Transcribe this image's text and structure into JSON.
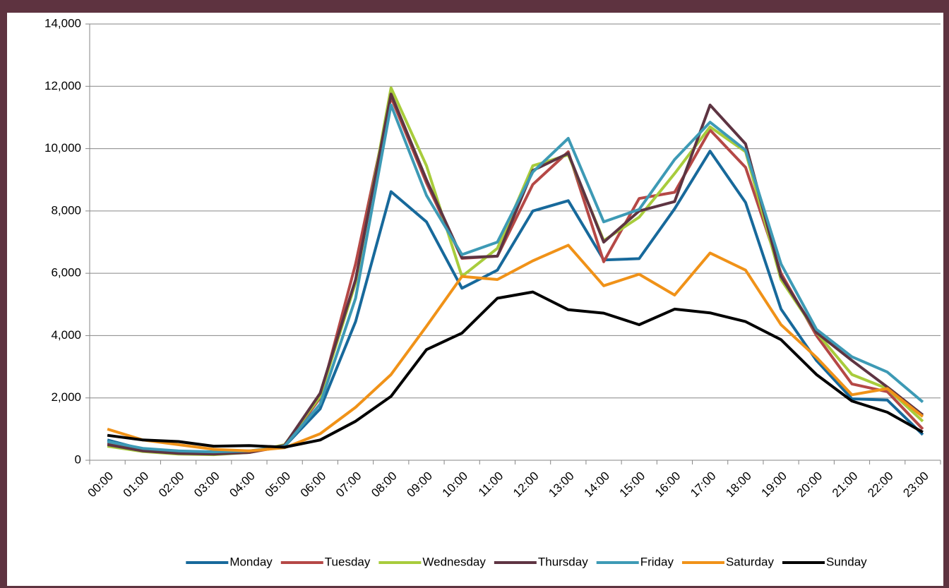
{
  "chart_data": {
    "type": "line",
    "categories": [
      "00:00",
      "01:00",
      "02:00",
      "03:00",
      "04:00",
      "05:00",
      "06:00",
      "07:00",
      "08:00",
      "09:00",
      "10:00",
      "11:00",
      "12:00",
      "13:00",
      "14:00",
      "15:00",
      "16:00",
      "17:00",
      "18:00",
      "19:00",
      "20:00",
      "21:00",
      "22:00",
      "23:00"
    ],
    "series": [
      {
        "name": "Monday",
        "color": "#17699b",
        "values": [
          650,
          350,
          280,
          250,
          280,
          450,
          1650,
          4450,
          8620,
          7650,
          5520,
          6100,
          8000,
          8330,
          6430,
          6470,
          8070,
          9920,
          8270,
          4850,
          3200,
          1970,
          1930,
          820
        ]
      },
      {
        "name": "Tuesday",
        "color": "#b54846",
        "values": [
          550,
          300,
          230,
          220,
          250,
          450,
          2000,
          6300,
          11650,
          8900,
          6480,
          6550,
          8850,
          9900,
          6370,
          8400,
          8600,
          10600,
          9400,
          6000,
          4000,
          2450,
          2200,
          1000
        ]
      },
      {
        "name": "Wednesday",
        "color": "#a8cc3c",
        "values": [
          450,
          280,
          200,
          180,
          250,
          500,
          2050,
          5700,
          11950,
          9450,
          5900,
          6800,
          9450,
          9800,
          7050,
          7800,
          9200,
          10700,
          9900,
          5800,
          4100,
          2750,
          2300,
          1250
        ]
      },
      {
        "name": "Thursday",
        "color": "#5e3442",
        "values": [
          500,
          300,
          220,
          200,
          250,
          480,
          2150,
          5800,
          11750,
          9000,
          6500,
          6550,
          9300,
          9850,
          7000,
          8000,
          8300,
          11400,
          10150,
          5900,
          4100,
          3200,
          2350,
          1450
        ]
      },
      {
        "name": "Friday",
        "color": "#3d9ab5",
        "values": [
          600,
          380,
          300,
          270,
          300,
          450,
          1800,
          5200,
          11400,
          8500,
          6600,
          7000,
          9250,
          10330,
          7650,
          8050,
          9650,
          10850,
          9950,
          6300,
          4200,
          3320,
          2830,
          1870
        ]
      },
      {
        "name": "Saturday",
        "color": "#f09218",
        "values": [
          1000,
          650,
          500,
          350,
          300,
          400,
          850,
          1700,
          2750,
          4300,
          5900,
          5800,
          6400,
          6900,
          5600,
          5970,
          5300,
          6650,
          6100,
          4350,
          3300,
          2100,
          2300,
          1400
        ]
      },
      {
        "name": "Sunday",
        "color": "#000000",
        "values": [
          800,
          650,
          600,
          450,
          470,
          420,
          650,
          1250,
          2050,
          3550,
          4080,
          5200,
          5400,
          4830,
          4720,
          4350,
          4850,
          4730,
          4450,
          3870,
          2750,
          1900,
          1540,
          900
        ]
      }
    ],
    "ylim": [
      0,
      14000
    ],
    "yticks": [
      0,
      {
        "value": 2000,
        "label": "2,000"
      },
      {
        "value": 4000,
        "label": "4,000"
      },
      {
        "value": 6000,
        "label": "6,000"
      },
      {
        "value": 8000,
        "label": "8,000"
      },
      {
        "value": 10000,
        "label": "10,000"
      },
      {
        "value": 12000,
        "label": "12,000"
      },
      {
        "value": 14000,
        "label": "14,000"
      }
    ],
    "grid": true,
    "legend": "bottom"
  }
}
